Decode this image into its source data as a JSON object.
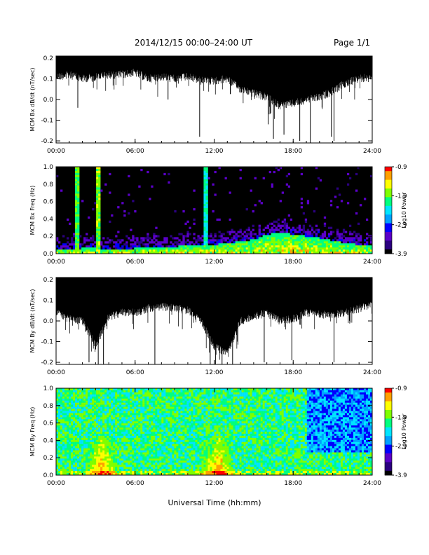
{
  "header": {
    "title": "2014/12/15   00:00–24:00 UT",
    "page": "Page 1/1"
  },
  "xlabel": "Universal Time (hh:mm)",
  "colorscale": {
    "colors": [
      "#000000",
      "#2b0080",
      "#5a00c8",
      "#0000ff",
      "#00a0ff",
      "#00e5ff",
      "#00ff7f",
      "#7fff00",
      "#ffff00",
      "#ffa000",
      "#ff0000"
    ]
  },
  "chart_data": [
    {
      "type": "line",
      "ylabel": "MCM Bx dB/dt (nT/sec)",
      "xlim": [
        0,
        24
      ],
      "ylim": [
        -0.21,
        0.21
      ],
      "xticks": [
        "00:00",
        "06:00",
        "12:00",
        "18:00",
        "24:00"
      ],
      "yticks": [
        "0.2",
        "0.1",
        "0.0",
        "-0.1",
        "-0.2"
      ],
      "envelope": {
        "hours": [
          0,
          1,
          2,
          3,
          4,
          5,
          6,
          7,
          8,
          9,
          10,
          11,
          12,
          13,
          14,
          15,
          16,
          17,
          18,
          19,
          20,
          21,
          22,
          23,
          24
        ],
        "lower": [
          0.13,
          0.14,
          0.12,
          0.13,
          0.14,
          0.14,
          0.15,
          0.12,
          0.13,
          0.12,
          0.13,
          0.11,
          0.11,
          0.12,
          0.07,
          0.05,
          0.03,
          -0.01,
          0.0,
          0.02,
          0.03,
          0.06,
          0.1,
          0.12,
          0.13
        ]
      },
      "spikes": [
        {
          "h": 1.65,
          "v": -0.04
        },
        {
          "h": 8.5,
          "v": 0.0
        },
        {
          "h": 10.9,
          "v": -0.18
        },
        {
          "h": 16.1,
          "v": -0.12
        },
        {
          "h": 16.5,
          "v": -0.19
        },
        {
          "h": 17.3,
          "v": -0.17
        },
        {
          "h": 18.5,
          "v": -0.2
        },
        {
          "h": 19.3,
          "v": -0.21
        },
        {
          "h": 20.9,
          "v": -0.18
        },
        {
          "h": 21.1,
          "v": -0.2
        }
      ]
    },
    {
      "type": "heatmap",
      "ylabel": "MCM Bx Freq (Hz)",
      "xlim": [
        0,
        24
      ],
      "ylim": [
        0,
        1.0
      ],
      "xticks": [
        "00:00",
        "06:00",
        "12:00",
        "18:00",
        "24:00"
      ],
      "yticks": [
        "1.0",
        "0.8",
        "0.6",
        "0.4",
        "0.2",
        "0.0"
      ],
      "colorbar": {
        "label": "Log10 Power",
        "min": -3.9,
        "max": -0.9,
        "ticks": [
          "-0.9",
          "-1.9",
          "-2.9",
          "-3.9"
        ]
      },
      "base_level": [
        0.05,
        0.05,
        0.06,
        0.06,
        0.05,
        0.05,
        0.06,
        0.07,
        0.08,
        0.08,
        0.09,
        0.09,
        0.1,
        0.12,
        0.14,
        0.16,
        0.22,
        0.24,
        0.22,
        0.2,
        0.18,
        0.15,
        0.12,
        0.1,
        0.09
      ],
      "stripes": [
        {
          "h": 1.6,
          "level": 0.65
        },
        {
          "h": 3.25,
          "level": 0.7
        },
        {
          "h": 11.4,
          "level": 0.55
        }
      ]
    },
    {
      "type": "line",
      "ylabel": "MCM By dB/dt (nT/sec)",
      "xlim": [
        0,
        24
      ],
      "ylim": [
        -0.21,
        0.21
      ],
      "xticks": [
        "00:00",
        "06:00",
        "12:00",
        "18:00",
        "24:00"
      ],
      "yticks": [
        "0.2",
        "0.1",
        "0.0",
        "-0.1",
        "-0.2"
      ],
      "envelope": {
        "hours": [
          0,
          1,
          2,
          3,
          4,
          5,
          6,
          7,
          8,
          9,
          10,
          11,
          12,
          13,
          14,
          15,
          16,
          17,
          18,
          19,
          20,
          21,
          22,
          23,
          24
        ],
        "lower": [
          0.06,
          0.03,
          0.02,
          -0.1,
          0.04,
          0.06,
          0.06,
          0.08,
          0.09,
          0.08,
          0.07,
          0.02,
          -0.1,
          -0.14,
          0.02,
          0.04,
          0.06,
          0.02,
          0.03,
          0.06,
          0.05,
          0.05,
          0.06,
          0.08,
          0.1
        ]
      },
      "spikes": [
        {
          "h": 2.5,
          "v": -0.2
        },
        {
          "h": 3.2,
          "v": -0.21
        },
        {
          "h": 3.6,
          "v": -0.21
        },
        {
          "h": 7.5,
          "v": -0.21
        },
        {
          "h": 11.7,
          "v": -0.21
        },
        {
          "h": 12.1,
          "v": -0.21
        },
        {
          "h": 12.6,
          "v": -0.21
        },
        {
          "h": 13.4,
          "v": -0.21
        },
        {
          "h": 15.8,
          "v": -0.2
        },
        {
          "h": 17.9,
          "v": -0.19
        },
        {
          "h": 21.1,
          "v": -0.2
        }
      ]
    },
    {
      "type": "heatmap",
      "ylabel": "MCM By Freq (Hz)",
      "xlim": [
        0,
        24
      ],
      "ylim": [
        0,
        1.0
      ],
      "xticks": [
        "00:00",
        "06:00",
        "12:00",
        "18:00",
        "24:00"
      ],
      "yticks": [
        "1.0",
        "0.8",
        "0.6",
        "0.4",
        "0.2",
        "0.0"
      ],
      "colorbar": {
        "label": "Log10 Power",
        "min": -3.9,
        "max": -0.9,
        "ticks": [
          "-0.9",
          "-1.9",
          "-2.9",
          "-3.9"
        ]
      },
      "hot_spots": [
        {
          "h": 3.5,
          "f": 0.15
        },
        {
          "h": 12.3,
          "f": 0.15
        }
      ],
      "dark_region": {
        "from": 19.0,
        "to": 24.0
      }
    }
  ]
}
